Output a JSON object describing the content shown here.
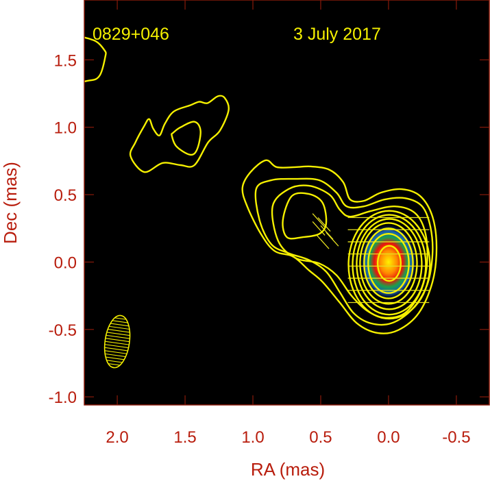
{
  "chart_data": {
    "type": "contour",
    "source_label": "0829+046",
    "date_label": "3 July 2017",
    "xlabel": "RA (mas)",
    "ylabel": "Dec (mas)",
    "xlim": [
      2.243,
      -0.743
    ],
    "ylim": [
      -1.06,
      1.944
    ],
    "xticks": [
      2.0,
      1.5,
      1.0,
      0.5,
      0.0,
      -0.5
    ],
    "xtick_labels": [
      "2.0",
      "1.5",
      "1.0",
      "0.5",
      "0.0",
      "-0.5"
    ],
    "yticks": [
      1.5,
      1.0,
      0.5,
      0.0,
      -0.5,
      -1.0
    ],
    "ytick_labels": [
      "1.5",
      "1.0",
      "0.5",
      "0.0",
      "-0.5",
      "-1.0"
    ],
    "grid": false,
    "colors": {
      "contour": "#f5f000",
      "axis": "#b81c0c",
      "background": "#000000"
    },
    "core_intensity": {
      "ra": 0.0,
      "dec": 0.0,
      "rx": 0.21,
      "ry": 0.28,
      "colormap": [
        "#fff200",
        "#ff8a00",
        "#e8140c",
        "#1aa04a",
        "#1a60b0",
        "#061a50"
      ]
    },
    "beam": {
      "ra": 2.0,
      "dec": -0.59,
      "major": 0.39,
      "minor": 0.18,
      "pa_deg": 8
    },
    "contours": [
      {
        "name": "edge-blob",
        "open": false,
        "points": [
          [
            2.35,
            1.65
          ],
          [
            2.18,
            1.648
          ],
          [
            2.094,
            1.571
          ],
          [
            2.089,
            1.52
          ],
          [
            2.13,
            1.383
          ],
          [
            2.205,
            1.347
          ],
          [
            2.35,
            1.36
          ]
        ]
      },
      {
        "name": "knot-outer",
        "open": false,
        "points": [
          [
            1.902,
            0.786
          ],
          [
            1.801,
            0.668
          ],
          [
            1.664,
            0.735
          ],
          [
            1.533,
            0.719
          ],
          [
            1.431,
            0.719
          ],
          [
            1.33,
            0.888
          ],
          [
            1.244,
            0.974
          ],
          [
            1.179,
            1.128
          ],
          [
            1.209,
            1.219
          ],
          [
            1.259,
            1.23
          ],
          [
            1.335,
            1.179
          ],
          [
            1.396,
            1.189
          ],
          [
            1.462,
            1.163
          ],
          [
            1.583,
            1.117
          ],
          [
            1.649,
            1.026
          ],
          [
            1.689,
            0.939
          ],
          [
            1.735,
            0.99
          ],
          [
            1.765,
            1.061
          ],
          [
            1.801,
            1.01
          ],
          [
            1.866,
            0.888
          ]
        ]
      },
      {
        "name": "knot-inner",
        "open": false,
        "points": [
          [
            1.598,
            0.939
          ],
          [
            1.563,
            0.857
          ],
          [
            1.462,
            0.796
          ],
          [
            1.411,
            0.837
          ],
          [
            1.386,
            0.974
          ],
          [
            1.431,
            1.041
          ],
          [
            1.533,
            1.0
          ],
          [
            1.588,
            0.959
          ]
        ]
      },
      {
        "name": "level-1",
        "open": false,
        "points": [
          [
            1.077,
            0.551
          ],
          [
            1.017,
            0.668
          ],
          [
            0.905,
            0.755
          ],
          [
            0.824,
            0.704
          ],
          [
            0.688,
            0.704
          ],
          [
            0.572,
            0.709
          ],
          [
            0.435,
            0.684
          ],
          [
            0.334,
            0.592
          ],
          [
            0.283,
            0.464
          ],
          [
            0.182,
            0.454
          ],
          [
            0.056,
            0.515
          ],
          [
            -0.096,
            0.541
          ],
          [
            -0.233,
            0.49
          ],
          [
            -0.324,
            0.337
          ],
          [
            -0.354,
            0.107
          ],
          [
            -0.324,
            -0.148
          ],
          [
            -0.223,
            -0.378
          ],
          [
            -0.071,
            -0.505
          ],
          [
            0.081,
            -0.526
          ],
          [
            0.233,
            -0.454
          ],
          [
            0.359,
            -0.301
          ],
          [
            0.486,
            -0.148
          ],
          [
            0.587,
            -0.061
          ],
          [
            0.703,
            0.041
          ],
          [
            0.84,
            0.082
          ],
          [
            0.941,
            0.209
          ],
          [
            1.042,
            0.413
          ]
        ]
      },
      {
        "name": "level-2",
        "open": false,
        "points": [
          [
            0.976,
            0.541
          ],
          [
            0.865,
            0.607
          ],
          [
            0.688,
            0.617
          ],
          [
            0.511,
            0.607
          ],
          [
            0.384,
            0.515
          ],
          [
            0.309,
            0.413
          ],
          [
            0.182,
            0.413
          ],
          [
            0.03,
            0.464
          ],
          [
            -0.121,
            0.474
          ],
          [
            -0.248,
            0.413
          ],
          [
            -0.309,
            0.26
          ],
          [
            -0.324,
            0.056
          ],
          [
            -0.283,
            -0.173
          ],
          [
            -0.172,
            -0.352
          ],
          [
            -0.02,
            -0.454
          ],
          [
            0.132,
            -0.454
          ],
          [
            0.258,
            -0.378
          ],
          [
            0.359,
            -0.224
          ],
          [
            0.46,
            -0.071
          ],
          [
            0.587,
            0.015
          ],
          [
            0.738,
            0.066
          ],
          [
            0.865,
            0.133
          ],
          [
            0.951,
            0.311
          ]
        ]
      },
      {
        "name": "level-3",
        "open": false,
        "points": [
          [
            0.855,
            0.413
          ],
          [
            0.738,
            0.541
          ],
          [
            0.587,
            0.566
          ],
          [
            0.435,
            0.5
          ],
          [
            0.359,
            0.388
          ],
          [
            0.283,
            0.337
          ],
          [
            0.132,
            0.378
          ],
          [
            -0.046,
            0.413
          ],
          [
            -0.197,
            0.362
          ],
          [
            -0.273,
            0.209
          ],
          [
            -0.283,
            -0.02
          ],
          [
            -0.233,
            -0.224
          ],
          [
            -0.121,
            -0.378
          ],
          [
            0.03,
            -0.413
          ],
          [
            0.157,
            -0.362
          ],
          [
            0.273,
            -0.25
          ],
          [
            0.384,
            -0.097
          ],
          [
            0.511,
            -0.01
          ],
          [
            0.688,
            0.031
          ],
          [
            0.814,
            0.158
          ]
        ]
      },
      {
        "name": "level-4-jet",
        "open": false,
        "points": [
          [
            0.779,
            0.311
          ],
          [
            0.713,
            0.49
          ],
          [
            0.587,
            0.505
          ],
          [
            0.486,
            0.439
          ],
          [
            0.46,
            0.286
          ],
          [
            0.511,
            0.209
          ],
          [
            0.637,
            0.184
          ],
          [
            0.749,
            0.184
          ]
        ]
      }
    ],
    "core_contours": [
      {
        "ra": -0.005,
        "dec": -0.02,
        "rx": 0.3,
        "ry": 0.4
      },
      {
        "ra": -0.005,
        "dec": -0.02,
        "rx": 0.27,
        "ry": 0.37
      },
      {
        "ra": -0.005,
        "dec": -0.015,
        "rx": 0.24,
        "ry": 0.335
      },
      {
        "ra": 0.0,
        "dec": -0.01,
        "rx": 0.21,
        "ry": 0.3
      },
      {
        "ra": 0.0,
        "dec": -0.01,
        "rx": 0.18,
        "ry": 0.26
      },
      {
        "ra": 0.0,
        "dec": -0.01,
        "rx": 0.15,
        "ry": 0.22
      },
      {
        "ra": -0.005,
        "dec": -0.01,
        "rx": 0.085,
        "ry": 0.13
      }
    ]
  }
}
